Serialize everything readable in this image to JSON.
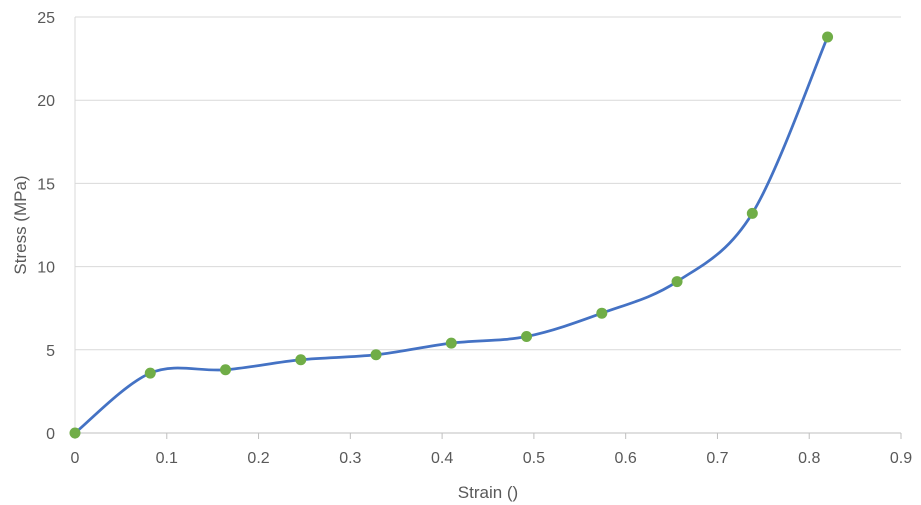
{
  "chart_data": {
    "type": "scatter",
    "title": "",
    "xlabel": "Strain ()",
    "ylabel": "Stress (MPa)",
    "xlim": [
      0,
      0.9
    ],
    "ylim": [
      0,
      25
    ],
    "x_ticks": [
      "0",
      "0.1",
      "0.2",
      "0.3",
      "0.4",
      "0.5",
      "0.6",
      "0.7",
      "0.8",
      "0.9"
    ],
    "y_ticks": [
      "0",
      "5",
      "10",
      "15",
      "20",
      "25"
    ],
    "grid": "horizontal",
    "legend": "none",
    "series": [
      {
        "x": [
          0,
          0.082,
          0.164,
          0.246,
          0.328,
          0.41,
          0.492,
          0.574,
          0.656,
          0.738,
          0.82
        ],
        "y": [
          0.0,
          3.6,
          3.8,
          4.4,
          4.7,
          5.4,
          5.8,
          7.2,
          9.1,
          13.2,
          23.8
        ],
        "line_color": "#4472C4",
        "marker_color": "#70AD47",
        "smooth": true
      }
    ]
  }
}
